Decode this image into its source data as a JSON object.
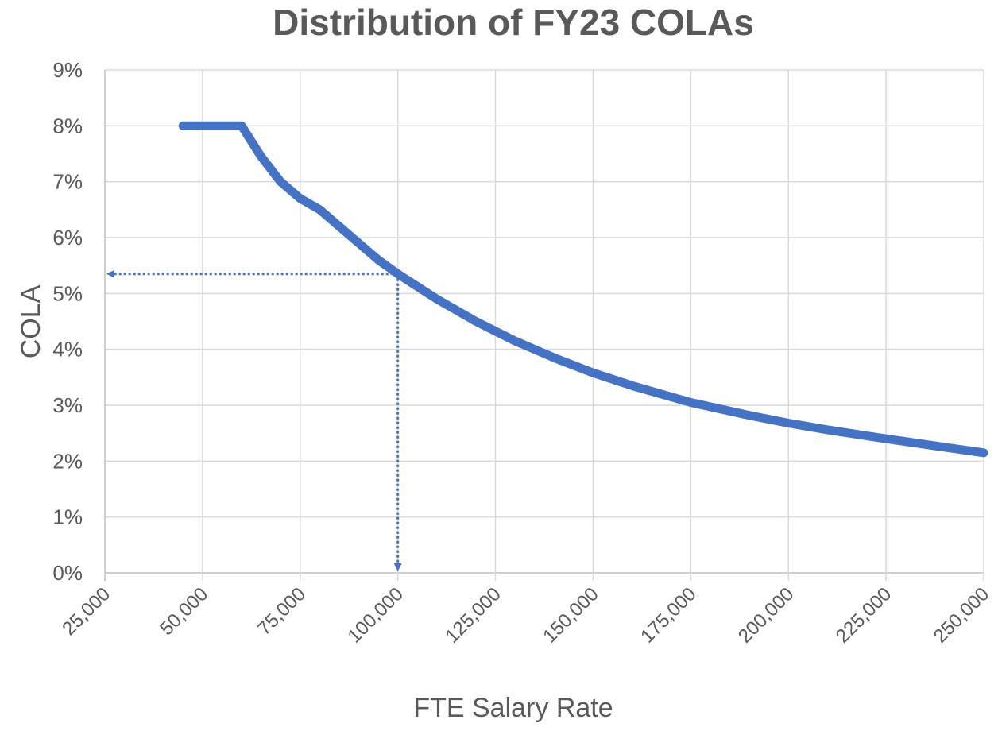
{
  "chart_data": {
    "type": "line",
    "title": "Distribution of FY23 COLAs",
    "xlabel": "FTE Salary Rate",
    "ylabel": "COLA",
    "xlim": [
      25000,
      250000
    ],
    "ylim": [
      0,
      0.09
    ],
    "x_ticks": [
      "25,000",
      "50,000",
      "75,000",
      "100,000",
      "125,000",
      "150,000",
      "175,000",
      "200,000",
      "225,000",
      "250,000"
    ],
    "x_tick_values": [
      25000,
      50000,
      75000,
      100000,
      125000,
      150000,
      175000,
      200000,
      225000,
      250000
    ],
    "y_ticks": [
      "0%",
      "1%",
      "2%",
      "3%",
      "4%",
      "5%",
      "6%",
      "7%",
      "8%",
      "9%"
    ],
    "y_tick_values": [
      0,
      0.01,
      0.02,
      0.03,
      0.04,
      0.05,
      0.06,
      0.07,
      0.08,
      0.09
    ],
    "grid": true,
    "line_color": "#4472c4",
    "series": [
      {
        "x": [
          45000,
          50000,
          55000,
          60000,
          65000,
          70000,
          75000,
          80000,
          85000,
          90000,
          95000,
          100000,
          110000,
          120000,
          130000,
          140000,
          150000,
          160000,
          175000,
          190000,
          200000,
          210000,
          225000,
          240000,
          250000
        ],
        "y": [
          0.08,
          0.08,
          0.08,
          0.08,
          0.0745,
          0.07,
          0.067,
          0.065,
          0.062,
          0.059,
          0.056,
          0.0535,
          0.049,
          0.045,
          0.0415,
          0.0385,
          0.0358,
          0.0335,
          0.0305,
          0.0282,
          0.0268,
          0.0256,
          0.024,
          0.0225,
          0.0215
        ]
      }
    ],
    "annotations": [
      {
        "type": "dotted-arrow",
        "from": [
          100000,
          0.0535
        ],
        "to": [
          25000,
          0.0535
        ]
      },
      {
        "type": "dotted-arrow",
        "from": [
          100000,
          0.0535
        ],
        "to": [
          100000,
          0
        ]
      }
    ]
  }
}
